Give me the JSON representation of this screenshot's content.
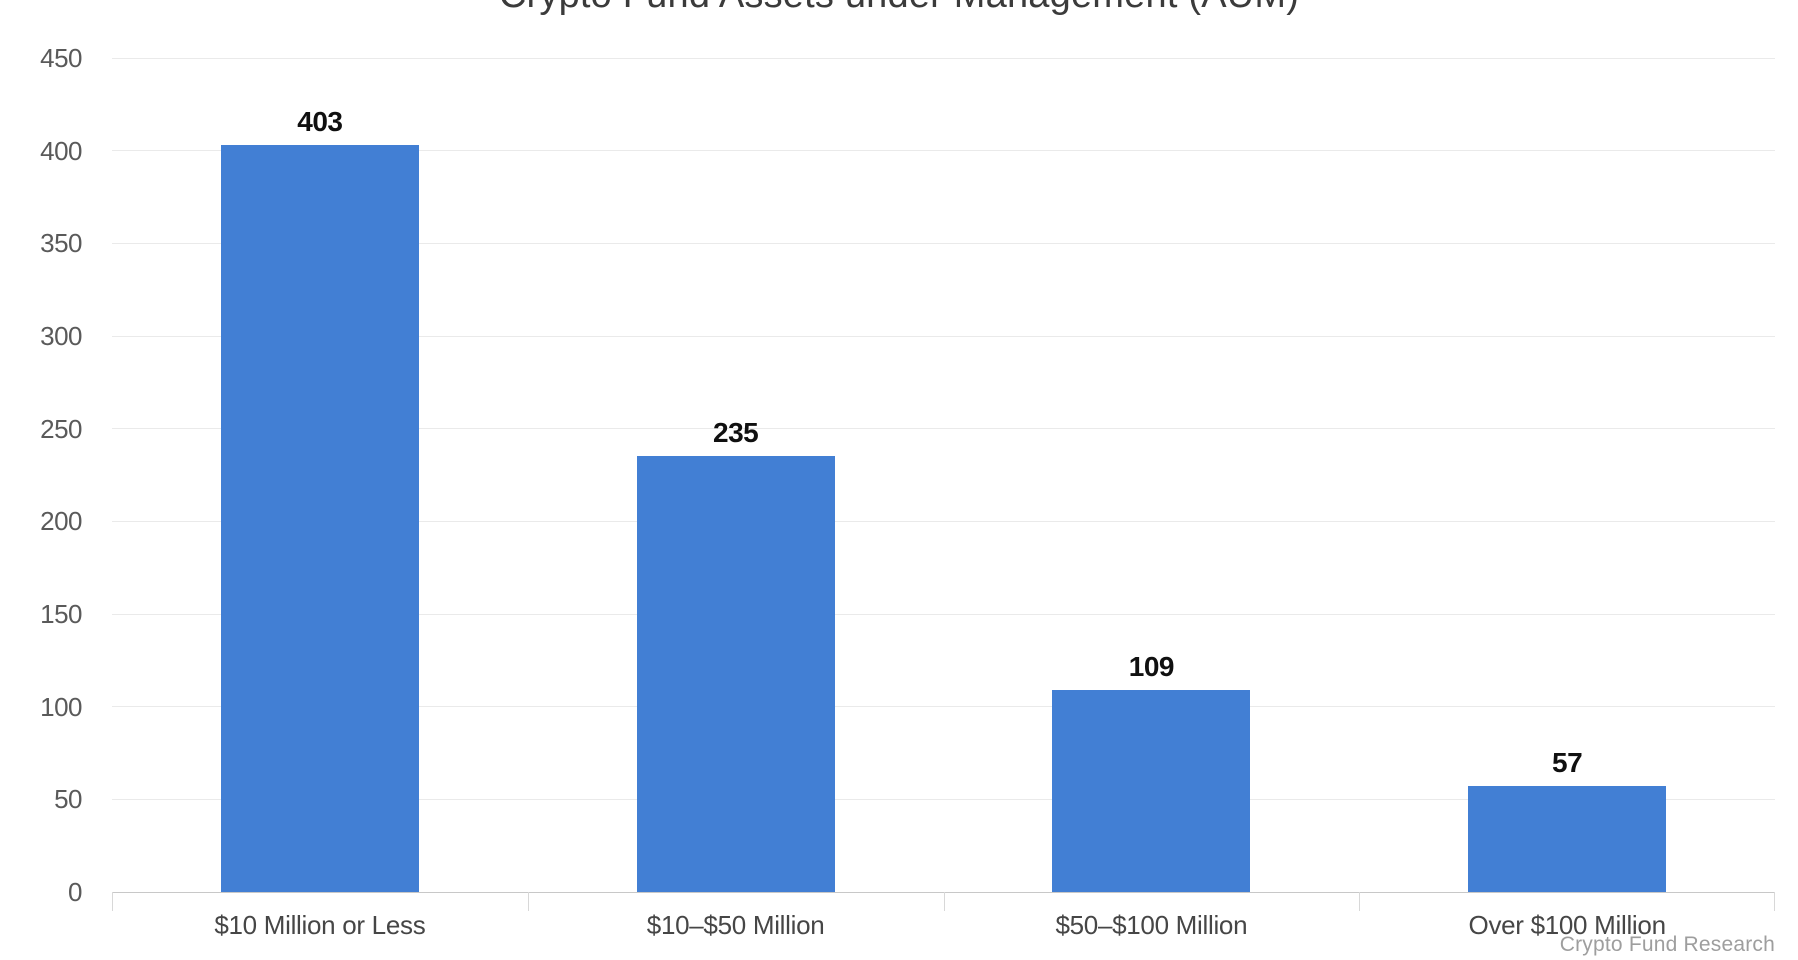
{
  "page": {
    "title": "Crypto Fund Assets under Management (AUM)",
    "attribution": "Crypto Fund Research"
  },
  "chart_data": {
    "type": "bar",
    "title": "Crypto Fund Assets under Management (AUM)",
    "categories": [
      "$10 Million or Less",
      "$10–$50 Million",
      "$50–$100 Million",
      "Over $100 Million"
    ],
    "values": [
      403,
      235,
      109,
      57
    ],
    "value_labels": [
      "403",
      "235",
      "109",
      "57"
    ],
    "yticks": [
      0,
      50,
      100,
      150,
      200,
      250,
      300,
      350,
      400,
      450
    ],
    "ylim": [
      0,
      450
    ],
    "xlabel": "",
    "ylabel": "",
    "grid": true,
    "legend": false,
    "source": "Crypto Fund Research",
    "colors": {
      "bar": "#427FD4",
      "gridline": "#eaeaea",
      "axis_line": "#c8c8c8",
      "boundary_tick": "#d8d8d8",
      "value_label": "#101010",
      "y_tick_label": "#5a5a5a",
      "x_tick_label": "#464646",
      "title": "#3b3b3b",
      "attribution": "#9e9e9e",
      "background": "#ffffff"
    }
  }
}
